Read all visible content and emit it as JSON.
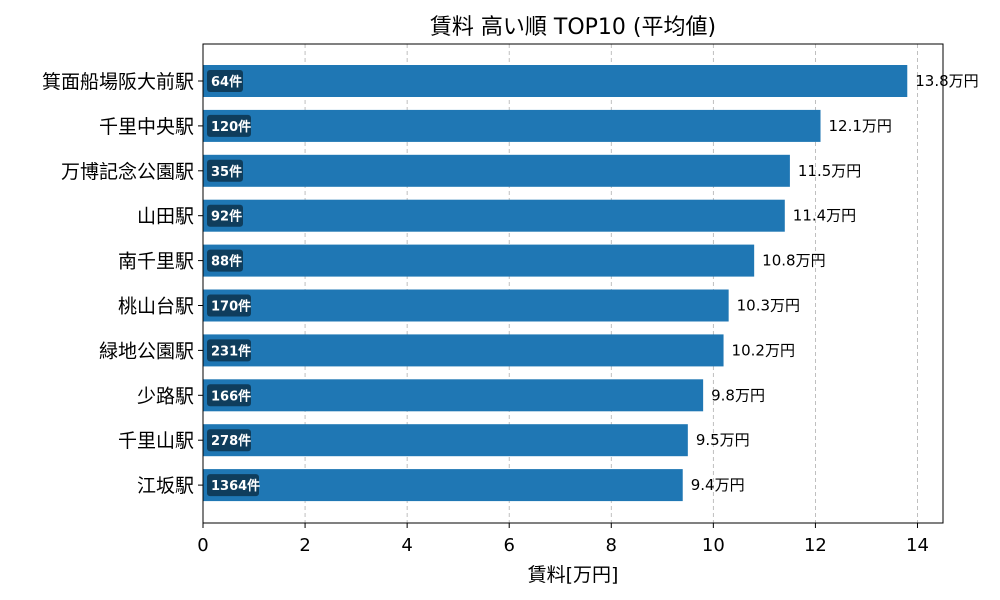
{
  "chart_data": {
    "type": "bar",
    "orientation": "horizontal",
    "title": "賃料 高い順 TOP10 (平均値)",
    "xlabel": "賃料[万円]",
    "ylabel": "",
    "xlim": [
      0,
      14.5
    ],
    "xticks": [
      0,
      2,
      4,
      6,
      8,
      10,
      12,
      14
    ],
    "grid": "x-dashed",
    "bar_color": "#1f77b4",
    "badge_color": "#0f3d5c",
    "value_suffix": "万円",
    "categories": [
      "箕面船場阪大前駅",
      "千里中央駅",
      "万博記念公園駅",
      "山田駅",
      "南千里駅",
      "桃山台駅",
      "緑地公園駅",
      "少路駅",
      "千里山駅",
      "江坂駅"
    ],
    "values": [
      13.8,
      12.1,
      11.5,
      11.4,
      10.8,
      10.3,
      10.2,
      9.8,
      9.5,
      9.4
    ],
    "value_labels": [
      "13.8万円",
      "12.1万円",
      "11.5万円",
      "11.4万円",
      "10.8万円",
      "10.3万円",
      "10.2万円",
      "9.8万円",
      "9.5万円",
      "9.4万円"
    ],
    "counts": [
      "64件",
      "120件",
      "35件",
      "92件",
      "88件",
      "170件",
      "231件",
      "166件",
      "278件",
      "1364件"
    ]
  }
}
